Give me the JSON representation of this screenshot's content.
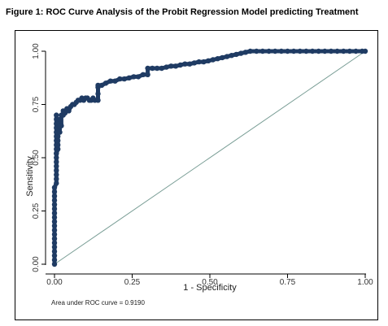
{
  "figure": {
    "title": "Figure 1: ROC Curve Analysis of the Probit Regression Model predicting Treatment"
  },
  "colors": {
    "curve": "#1f3b63",
    "reference_line": "#7a9e96",
    "axis": "#000000"
  },
  "chart_data": {
    "type": "line",
    "xlabel": "1 - Specificity",
    "ylabel": "Sensitivity",
    "xlim": [
      0,
      1
    ],
    "ylim": [
      0,
      1
    ],
    "x_ticks": [
      0,
      0.25,
      0.5,
      0.75,
      1
    ],
    "x_tick_labels": [
      "0.00",
      "0.25",
      "0.50",
      "0.75",
      "1.00"
    ],
    "y_ticks": [
      0,
      0.25,
      0.5,
      0.75,
      1
    ],
    "y_tick_labels": [
      "0.00",
      "0.25",
      "0.50",
      "0.75",
      "1.00"
    ],
    "grid": false,
    "annotation": "Area under ROC curve = 0.9190",
    "reference_line": {
      "x": [
        0,
        1
      ],
      "y": [
        0,
        1
      ]
    },
    "series": [
      {
        "x": [
          0.0,
          0.0,
          0.0,
          0.0,
          0.0,
          0.0,
          0.0,
          0.0,
          0.0,
          0.0,
          0.0,
          0.0,
          0.0,
          0.0,
          0.0,
          0.0,
          0.0,
          0.0,
          0.0,
          0.006,
          0.006,
          0.006,
          0.006,
          0.006,
          0.006,
          0.006,
          0.006,
          0.006,
          0.006,
          0.006,
          0.006,
          0.006,
          0.006,
          0.006,
          0.006,
          0.006,
          0.006,
          0.011,
          0.011,
          0.011,
          0.011,
          0.011,
          0.011,
          0.017,
          0.017,
          0.017,
          0.022,
          0.022,
          0.028,
          0.028,
          0.034,
          0.04,
          0.046,
          0.052,
          0.058,
          0.064,
          0.07,
          0.076,
          0.082,
          0.088,
          0.094,
          0.1,
          0.106,
          0.112,
          0.118,
          0.124,
          0.13,
          0.14,
          0.14,
          0.14,
          0.14,
          0.152,
          0.165,
          0.18,
          0.195,
          0.21,
          0.225,
          0.24,
          0.255,
          0.27,
          0.285,
          0.3,
          0.3,
          0.315,
          0.33,
          0.345,
          0.36,
          0.375,
          0.39,
          0.405,
          0.42,
          0.435,
          0.45,
          0.465,
          0.48,
          0.495,
          0.51,
          0.525,
          0.54,
          0.555,
          0.57,
          0.585,
          0.6,
          0.615,
          0.63,
          0.65,
          0.67,
          0.69,
          0.71,
          0.73,
          0.75,
          0.77,
          0.79,
          0.81,
          0.83,
          0.85,
          0.87,
          0.89,
          0.91,
          0.93,
          0.95,
          0.97,
          0.99,
          1.0
        ],
        "y": [
          0.0,
          0.02,
          0.04,
          0.06,
          0.08,
          0.1,
          0.12,
          0.14,
          0.16,
          0.18,
          0.2,
          0.22,
          0.24,
          0.26,
          0.28,
          0.3,
          0.32,
          0.34,
          0.36,
          0.38,
          0.4,
          0.42,
          0.44,
          0.46,
          0.48,
          0.5,
          0.52,
          0.54,
          0.56,
          0.58,
          0.6,
          0.62,
          0.64,
          0.66,
          0.68,
          0.7,
          0.52,
          0.54,
          0.56,
          0.58,
          0.6,
          0.62,
          0.64,
          0.62,
          0.65,
          0.68,
          0.65,
          0.7,
          0.7,
          0.72,
          0.71,
          0.73,
          0.72,
          0.74,
          0.75,
          0.75,
          0.76,
          0.77,
          0.77,
          0.78,
          0.77,
          0.78,
          0.78,
          0.77,
          0.77,
          0.78,
          0.77,
          0.77,
          0.8,
          0.83,
          0.84,
          0.84,
          0.85,
          0.86,
          0.86,
          0.87,
          0.87,
          0.875,
          0.88,
          0.88,
          0.89,
          0.89,
          0.92,
          0.92,
          0.92,
          0.92,
          0.925,
          0.93,
          0.93,
          0.935,
          0.94,
          0.94,
          0.945,
          0.95,
          0.95,
          0.955,
          0.96,
          0.965,
          0.97,
          0.975,
          0.98,
          0.985,
          0.99,
          0.995,
          1.0,
          1.0,
          1.0,
          1.0,
          1.0,
          1.0,
          1.0,
          1.0,
          1.0,
          1.0,
          1.0,
          1.0,
          1.0,
          1.0,
          1.0,
          1.0,
          1.0,
          1.0,
          1.0,
          1.0
        ]
      }
    ]
  }
}
